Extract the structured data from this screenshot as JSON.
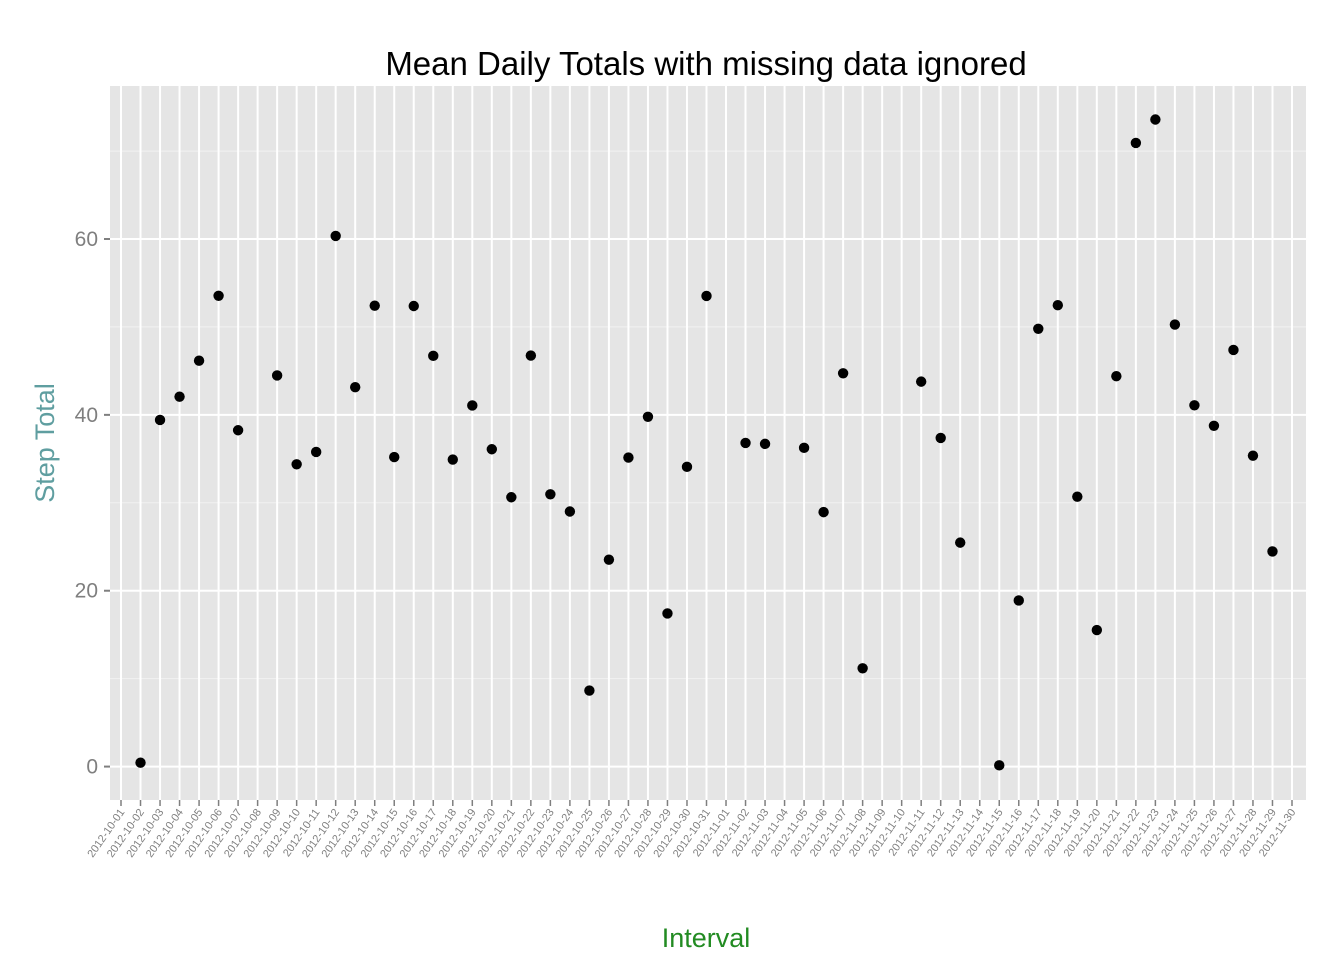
{
  "chart_data": {
    "type": "scatter",
    "title": "Mean Daily Totals with missing data ignored",
    "xlabel": "Interval",
    "ylabel": "Step Total",
    "ylim": [
      -3.8,
      77.4
    ],
    "yticks": [
      0,
      20,
      40,
      60
    ],
    "grid": true,
    "legend": "none",
    "colors": {
      "panel": "#e5e5e5",
      "grid_major": "#ffffff",
      "grid_minor": "#f2f2f2",
      "point": "#000000",
      "tick": "#7f7f7f",
      "ylabel": "#5f9ea0",
      "xlabel": "#228b22"
    },
    "categories": [
      "2012-10-01",
      "2012-10-02",
      "2012-10-03",
      "2012-10-04",
      "2012-10-05",
      "2012-10-06",
      "2012-10-07",
      "2012-10-08",
      "2012-10-09",
      "2012-10-10",
      "2012-10-11",
      "2012-10-12",
      "2012-10-13",
      "2012-10-14",
      "2012-10-15",
      "2012-10-16",
      "2012-10-17",
      "2012-10-18",
      "2012-10-19",
      "2012-10-20",
      "2012-10-21",
      "2012-10-22",
      "2012-10-23",
      "2012-10-24",
      "2012-10-25",
      "2012-10-26",
      "2012-10-27",
      "2012-10-28",
      "2012-10-29",
      "2012-10-30",
      "2012-10-31",
      "2012-11-01",
      "2012-11-02",
      "2012-11-03",
      "2012-11-04",
      "2012-11-05",
      "2012-11-06",
      "2012-11-07",
      "2012-11-08",
      "2012-11-09",
      "2012-11-10",
      "2012-11-11",
      "2012-11-12",
      "2012-11-13",
      "2012-11-14",
      "2012-11-15",
      "2012-11-16",
      "2012-11-17",
      "2012-11-18",
      "2012-11-19",
      "2012-11-20",
      "2012-11-21",
      "2012-11-22",
      "2012-11-23",
      "2012-11-24",
      "2012-11-25",
      "2012-11-26",
      "2012-11-27",
      "2012-11-28",
      "2012-11-29",
      "2012-11-30"
    ],
    "points": [
      {
        "x": "2012-10-02",
        "y": 0.44
      },
      {
        "x": "2012-10-03",
        "y": 39.42
      },
      {
        "x": "2012-10-04",
        "y": 42.07
      },
      {
        "x": "2012-10-05",
        "y": 46.16
      },
      {
        "x": "2012-10-06",
        "y": 53.54
      },
      {
        "x": "2012-10-07",
        "y": 38.25
      },
      {
        "x": "2012-10-09",
        "y": 44.48
      },
      {
        "x": "2012-10-10",
        "y": 34.38
      },
      {
        "x": "2012-10-11",
        "y": 35.78
      },
      {
        "x": "2012-10-12",
        "y": 60.35
      },
      {
        "x": "2012-10-13",
        "y": 43.15
      },
      {
        "x": "2012-10-14",
        "y": 52.42
      },
      {
        "x": "2012-10-15",
        "y": 35.2
      },
      {
        "x": "2012-10-16",
        "y": 52.38
      },
      {
        "x": "2012-10-17",
        "y": 46.71
      },
      {
        "x": "2012-10-18",
        "y": 34.92
      },
      {
        "x": "2012-10-19",
        "y": 41.07
      },
      {
        "x": "2012-10-20",
        "y": 36.09
      },
      {
        "x": "2012-10-21",
        "y": 30.63
      },
      {
        "x": "2012-10-22",
        "y": 46.74
      },
      {
        "x": "2012-10-23",
        "y": 30.97
      },
      {
        "x": "2012-10-24",
        "y": 29.01
      },
      {
        "x": "2012-10-25",
        "y": 8.65
      },
      {
        "x": "2012-10-26",
        "y": 23.53
      },
      {
        "x": "2012-10-27",
        "y": 35.14
      },
      {
        "x": "2012-10-28",
        "y": 39.78
      },
      {
        "x": "2012-10-29",
        "y": 17.42
      },
      {
        "x": "2012-10-30",
        "y": 34.09
      },
      {
        "x": "2012-10-31",
        "y": 53.52
      },
      {
        "x": "2012-11-02",
        "y": 36.81
      },
      {
        "x": "2012-11-03",
        "y": 36.7
      },
      {
        "x": "2012-11-05",
        "y": 36.25
      },
      {
        "x": "2012-11-06",
        "y": 28.94
      },
      {
        "x": "2012-11-07",
        "y": 44.73
      },
      {
        "x": "2012-11-08",
        "y": 11.18
      },
      {
        "x": "2012-11-11",
        "y": 43.78
      },
      {
        "x": "2012-11-12",
        "y": 37.38
      },
      {
        "x": "2012-11-13",
        "y": 25.47
      },
      {
        "x": "2012-11-15",
        "y": 0.14
      },
      {
        "x": "2012-11-16",
        "y": 18.89
      },
      {
        "x": "2012-11-17",
        "y": 49.79
      },
      {
        "x": "2012-11-18",
        "y": 52.47
      },
      {
        "x": "2012-11-19",
        "y": 30.7
      },
      {
        "x": "2012-11-20",
        "y": 15.53
      },
      {
        "x": "2012-11-21",
        "y": 44.4
      },
      {
        "x": "2012-11-22",
        "y": 70.93
      },
      {
        "x": "2012-11-23",
        "y": 73.59
      },
      {
        "x": "2012-11-24",
        "y": 50.27
      },
      {
        "x": "2012-11-25",
        "y": 41.09
      },
      {
        "x": "2012-11-26",
        "y": 38.76
      },
      {
        "x": "2012-11-27",
        "y": 47.38
      },
      {
        "x": "2012-11-28",
        "y": 35.36
      },
      {
        "x": "2012-11-29",
        "y": 24.47
      }
    ]
  }
}
